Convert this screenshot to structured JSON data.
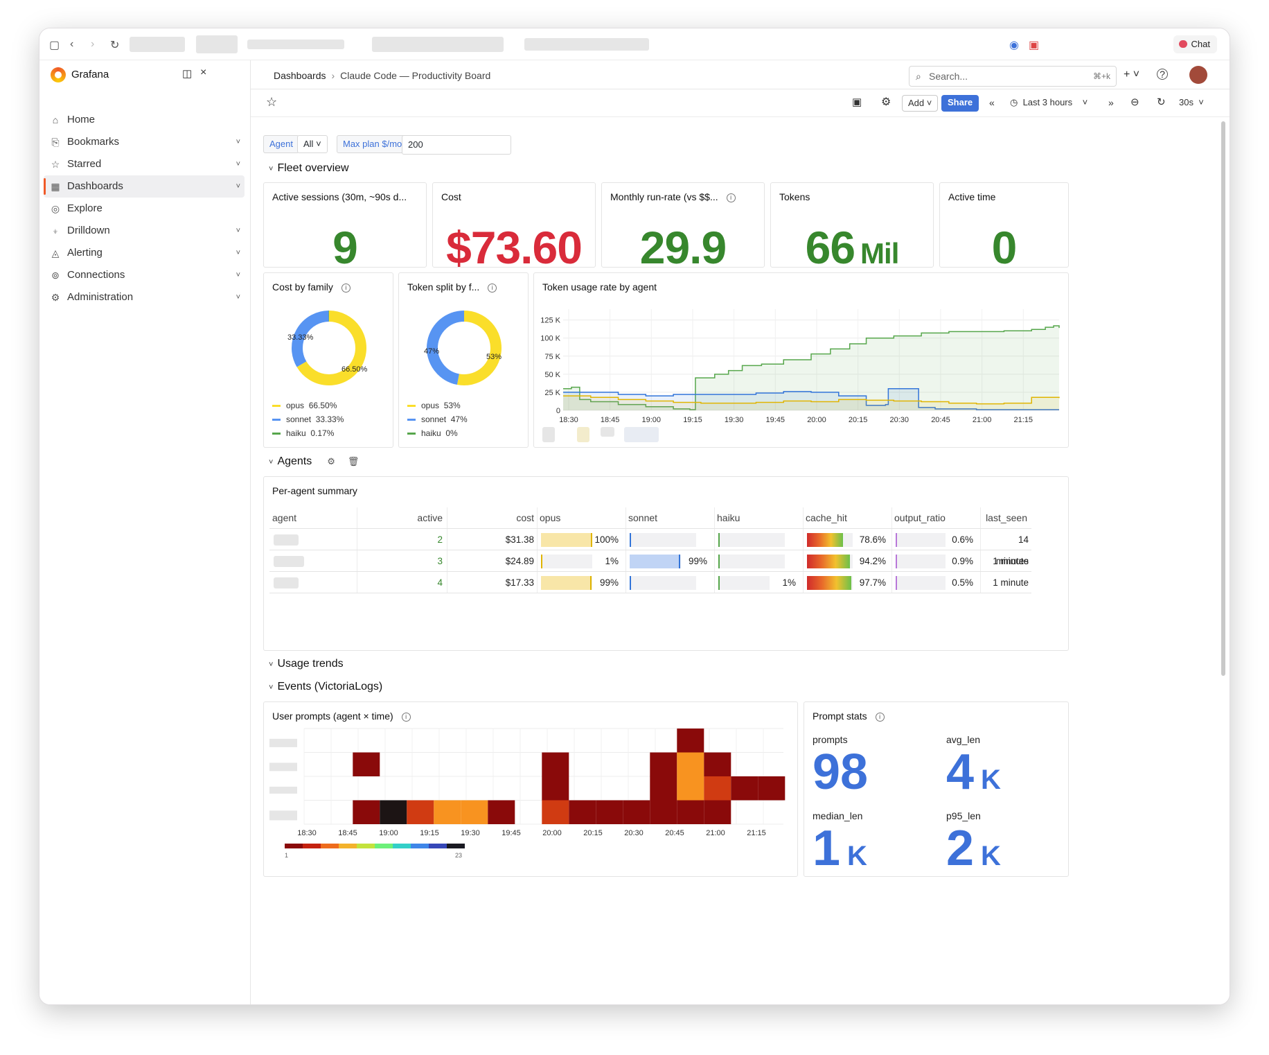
{
  "browser": {
    "chat_label": "Chat"
  },
  "app": {
    "brand": "Grafana"
  },
  "sidebar": {
    "items": [
      {
        "label": "Home",
        "icon": "home-icon",
        "chev": false
      },
      {
        "label": "Bookmarks",
        "icon": "bookmark-icon",
        "chev": true
      },
      {
        "label": "Starred",
        "icon": "star-icon",
        "chev": true
      },
      {
        "label": "Dashboards",
        "icon": "grid-icon",
        "chev": true,
        "active": true
      },
      {
        "label": "Explore",
        "icon": "compass-icon",
        "chev": false
      },
      {
        "label": "Drilldown",
        "icon": "drilldown-icon",
        "chev": true
      },
      {
        "label": "Alerting",
        "icon": "bell-icon",
        "chev": true
      },
      {
        "label": "Connections",
        "icon": "link-icon",
        "chev": true
      },
      {
        "label": "Administration",
        "icon": "gear-icon",
        "chev": true
      }
    ]
  },
  "header": {
    "breadcrumb_root": "Dashboards",
    "breadcrumb_sep": "›",
    "breadcrumb_current": "Claude Code — Productivity Board",
    "search_placeholder": "Search...",
    "search_kbd": "⌘+k"
  },
  "toolbar": {
    "add_label": "Add",
    "share_label": "Share",
    "time_range": "Last 3 hours",
    "refresh_interval": "30s"
  },
  "variables": {
    "agent_label": "Agent",
    "agent_value": "All",
    "plan_label": "Max plan $/mo",
    "plan_value": "200"
  },
  "rows": {
    "fleet": "Fleet overview",
    "agents": "Agents",
    "usage": "Usage trends",
    "events": "Events (VictoriaLogs)"
  },
  "stats": [
    {
      "title": "Active sessions (30m, ~90s d...",
      "value": "9",
      "unit": "",
      "color": "#37872d",
      "info": false
    },
    {
      "title": "Cost",
      "value": "$73.60",
      "unit": "",
      "color": "#d92b3a",
      "info": false
    },
    {
      "title": "Monthly run-rate (vs $$...",
      "value": "29.9",
      "unit": "",
      "color": "#37872d",
      "info": true
    },
    {
      "title": "Tokens",
      "value": "66",
      "unit": "Mil",
      "color": "#37872d",
      "info": false
    },
    {
      "title": "Active time",
      "value": "0",
      "unit": "",
      "color": "#37872d",
      "info": false
    }
  ],
  "cost_by_family": {
    "title": "Cost by family",
    "slices": [
      {
        "name": "opus",
        "value": 66.5,
        "label": "66.50%",
        "color": "#fade2a"
      },
      {
        "name": "sonnet",
        "value": 33.33,
        "label": "33.33%",
        "color": "#5794f2"
      },
      {
        "name": "haiku",
        "value": 0.17,
        "label": "0.17%",
        "color": "#56a64b"
      }
    ]
  },
  "token_split": {
    "title": "Token split by f...",
    "slices": [
      {
        "name": "opus",
        "value": 53,
        "label": "53%",
        "color": "#fade2a"
      },
      {
        "name": "sonnet",
        "value": 47,
        "label": "47%",
        "color": "#5794f2"
      },
      {
        "name": "haiku",
        "value": 0,
        "label": "0%",
        "color": "#56a64b"
      }
    ]
  },
  "chart_data": {
    "type": "line",
    "title": "Token usage rate by agent",
    "x_ticks": [
      "18:30",
      "18:45",
      "19:00",
      "19:15",
      "19:30",
      "19:45",
      "20:00",
      "20:15",
      "20:30",
      "20:45",
      "21:00",
      "21:15"
    ],
    "y_ticks": [
      "0",
      "25 K",
      "50 K",
      "75 K",
      "100 K",
      "125 K"
    ],
    "ylim": [
      0,
      140000
    ],
    "xlim_minutes": [
      0,
      180
    ],
    "series": [
      {
        "color": "#56a64b",
        "points": [
          [
            0,
            30000
          ],
          [
            3,
            32000
          ],
          [
            6,
            15000
          ],
          [
            10,
            12000
          ],
          [
            20,
            8000
          ],
          [
            30,
            5000
          ],
          [
            40,
            2000
          ],
          [
            46,
            1000
          ],
          [
            48,
            45000
          ],
          [
            55,
            50000
          ],
          [
            60,
            55000
          ],
          [
            65,
            62000
          ],
          [
            72,
            64000
          ],
          [
            80,
            70000
          ],
          [
            90,
            78000
          ],
          [
            97,
            85000
          ],
          [
            104,
            92000
          ],
          [
            110,
            100000
          ],
          [
            120,
            103000
          ],
          [
            130,
            107000
          ],
          [
            140,
            109000
          ],
          [
            150,
            109000
          ],
          [
            160,
            110000
          ],
          [
            170,
            112000
          ],
          [
            175,
            115000
          ],
          [
            178,
            117000
          ],
          [
            180,
            114000
          ]
        ]
      },
      {
        "color": "#3274d9",
        "points": [
          [
            0,
            25000
          ],
          [
            10,
            25000
          ],
          [
            20,
            22000
          ],
          [
            30,
            20000
          ],
          [
            40,
            22000
          ],
          [
            50,
            22000
          ],
          [
            60,
            22000
          ],
          [
            70,
            24000
          ],
          [
            80,
            26000
          ],
          [
            90,
            25000
          ],
          [
            100,
            20000
          ],
          [
            110,
            7000
          ],
          [
            117,
            8000
          ],
          [
            118,
            30000
          ],
          [
            128,
            30000
          ],
          [
            129,
            4000
          ],
          [
            135,
            2000
          ],
          [
            150,
            1000
          ],
          [
            180,
            1000
          ]
        ]
      },
      {
        "color": "#e0b400",
        "points": [
          [
            0,
            20000
          ],
          [
            10,
            18000
          ],
          [
            20,
            15000
          ],
          [
            30,
            13000
          ],
          [
            40,
            11000
          ],
          [
            50,
            10000
          ],
          [
            60,
            10000
          ],
          [
            70,
            11000
          ],
          [
            80,
            13000
          ],
          [
            90,
            12000
          ],
          [
            100,
            15000
          ],
          [
            110,
            14000
          ],
          [
            120,
            13000
          ],
          [
            130,
            12000
          ],
          [
            140,
            10000
          ],
          [
            150,
            9000
          ],
          [
            160,
            10000
          ],
          [
            170,
            18000
          ],
          [
            180,
            17000
          ]
        ]
      }
    ]
  },
  "agents_table": {
    "title": "Per-agent summary",
    "columns": [
      "agent",
      "active",
      "cost",
      "opus",
      "sonnet",
      "haiku",
      "cache_hit",
      "output_ratio",
      "last_seen"
    ],
    "rows": [
      {
        "active": "2",
        "cost": "$31.38",
        "opus": 1.0,
        "opus_label": "100%",
        "sonnet": 0.0,
        "sonnet_label": "",
        "haiku": 0.0,
        "haiku_label": "",
        "cache": 0.786,
        "cache_label": "78.6%",
        "out": 0.006,
        "out_label": "0.6%",
        "last_seen": "14 minutes"
      },
      {
        "active": "3",
        "cost": "$24.89",
        "opus": 0.01,
        "opus_label": "1%",
        "sonnet": 0.99,
        "sonnet_label": "99%",
        "haiku": 0.0,
        "haiku_label": "",
        "cache": 0.942,
        "cache_label": "94.2%",
        "out": 0.009,
        "out_label": "0.9%",
        "last_seen": "1 minute"
      },
      {
        "active": "4",
        "cost": "$17.33",
        "opus": 0.99,
        "opus_label": "99%",
        "sonnet": 0.0,
        "sonnet_label": "",
        "haiku": 0.01,
        "haiku_label": "1%",
        "cache": 0.977,
        "cache_label": "97.7%",
        "out": 0.005,
        "out_label": "0.5%",
        "last_seen": "1 minute"
      }
    ]
  },
  "heatmap": {
    "title": "User prompts (agent × time)",
    "x_ticks": [
      "18:30",
      "18:45",
      "19:00",
      "19:15",
      "19:30",
      "19:45",
      "20:00",
      "20:15",
      "20:30",
      "20:45",
      "21:00",
      "21:15"
    ],
    "scale_min": "1",
    "scale_max": "23"
  },
  "prompt_stats": {
    "title": "Prompt stats",
    "items": [
      {
        "label": "prompts",
        "value": "98",
        "unit": ""
      },
      {
        "label": "avg_len",
        "value": "4",
        "unit": "K"
      },
      {
        "label": "median_len",
        "value": "1",
        "unit": "K"
      },
      {
        "label": "p95_len",
        "value": "2",
        "unit": "K"
      }
    ]
  }
}
